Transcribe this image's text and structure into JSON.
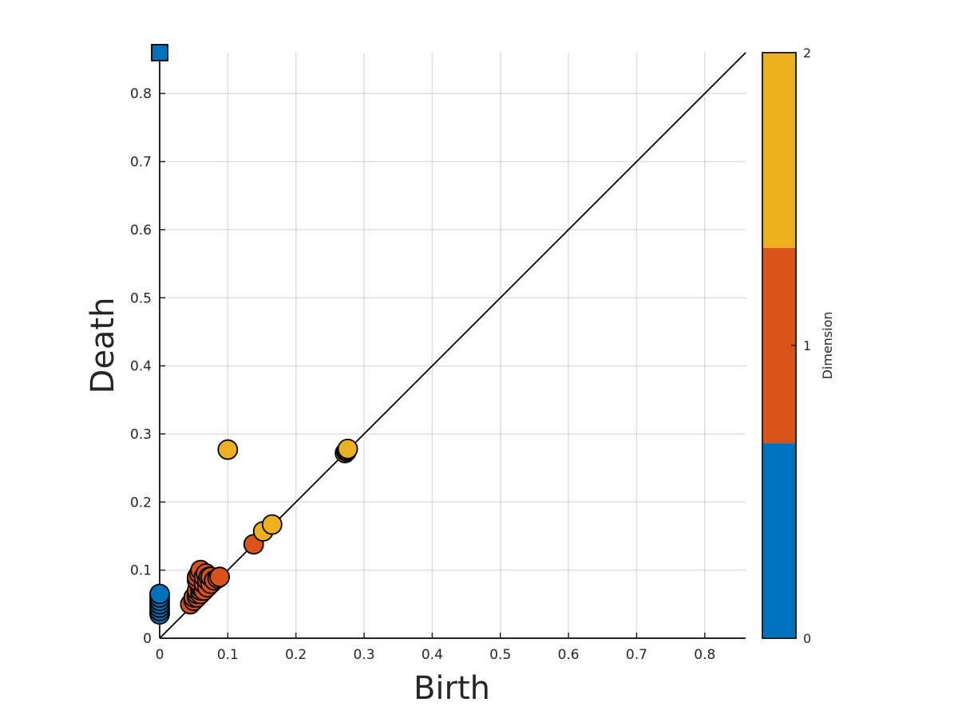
{
  "chart_data": {
    "type": "scatter",
    "title": "",
    "xlabel": "Birth",
    "ylabel": "Death",
    "xlim": [
      0,
      0.86
    ],
    "ylim": [
      0,
      0.86
    ],
    "x_ticks": [
      "0",
      "0.1",
      "0.2",
      "0.3",
      "0.4",
      "0.5",
      "0.6",
      "0.7",
      "0.8"
    ],
    "y_ticks": [
      "0",
      "0.1",
      "0.2",
      "0.3",
      "0.4",
      "0.5",
      "0.6",
      "0.7",
      "0.8"
    ],
    "grid": true,
    "diagonal": true,
    "colorbar": {
      "title": "Dimension",
      "ticks": [
        "0",
        "1",
        "2"
      ],
      "colors": [
        "#0072BD",
        "#D95319",
        "#EDB120"
      ]
    },
    "series": [
      {
        "dimension": 0,
        "color": "#0072BD",
        "points": [
          [
            0,
            0.035
          ],
          [
            0,
            0.04
          ],
          [
            0,
            0.045
          ],
          [
            0,
            0.05
          ],
          [
            0,
            0.055
          ],
          [
            0,
            0.06
          ],
          [
            0,
            0.065
          ]
        ],
        "infinite": [
          [
            0,
            0.86
          ]
        ]
      },
      {
        "dimension": 1,
        "color": "#D95319",
        "points": [
          [
            0.045,
            0.05
          ],
          [
            0.05,
            0.055
          ],
          [
            0.05,
            0.06
          ],
          [
            0.055,
            0.06
          ],
          [
            0.055,
            0.065
          ],
          [
            0.055,
            0.07
          ],
          [
            0.06,
            0.065
          ],
          [
            0.06,
            0.07
          ],
          [
            0.06,
            0.075
          ],
          [
            0.058,
            0.08
          ],
          [
            0.055,
            0.085
          ],
          [
            0.055,
            0.09
          ],
          [
            0.058,
            0.095
          ],
          [
            0.06,
            0.1
          ],
          [
            0.065,
            0.07
          ],
          [
            0.065,
            0.08
          ],
          [
            0.065,
            0.09
          ],
          [
            0.068,
            0.095
          ],
          [
            0.07,
            0.075
          ],
          [
            0.07,
            0.085
          ],
          [
            0.072,
            0.09
          ],
          [
            0.075,
            0.08
          ],
          [
            0.075,
            0.09
          ],
          [
            0.08,
            0.085
          ],
          [
            0.085,
            0.088
          ],
          [
            0.088,
            0.09
          ],
          [
            0.138,
            0.138
          ]
        ]
      },
      {
        "dimension": 2,
        "color": "#EDB120",
        "points": [
          [
            0.1,
            0.277
          ],
          [
            0.152,
            0.157
          ],
          [
            0.165,
            0.167
          ],
          [
            0.272,
            0.272
          ],
          [
            0.274,
            0.274
          ],
          [
            0.275,
            0.276
          ],
          [
            0.276,
            0.278
          ]
        ]
      }
    ]
  }
}
